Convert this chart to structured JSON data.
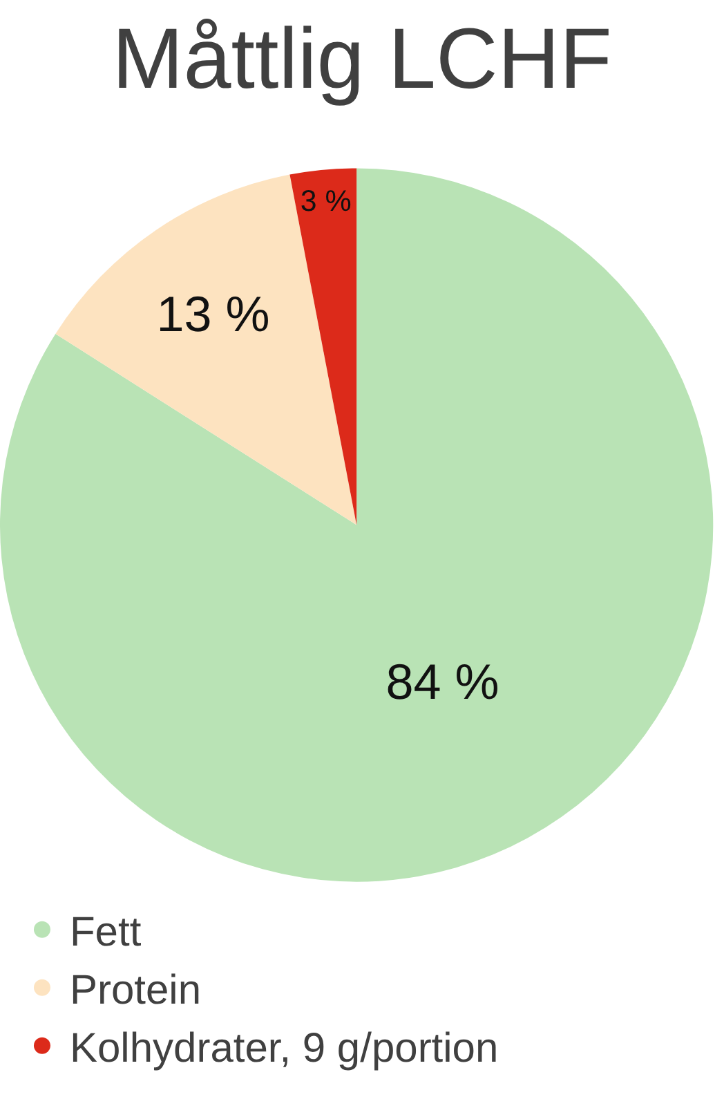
{
  "chart_data": {
    "type": "pie",
    "title": "Måttlig LCHF",
    "categories": [
      "Fett",
      "Protein",
      "Kolhydrater, 9 g/portion"
    ],
    "values": [
      84,
      13,
      3
    ],
    "colors": [
      "#b9e3b5",
      "#fde3c0",
      "#dc2a1a"
    ],
    "value_labels": [
      "84 %",
      "13 %",
      "3 %"
    ],
    "legend": "bottom left"
  }
}
